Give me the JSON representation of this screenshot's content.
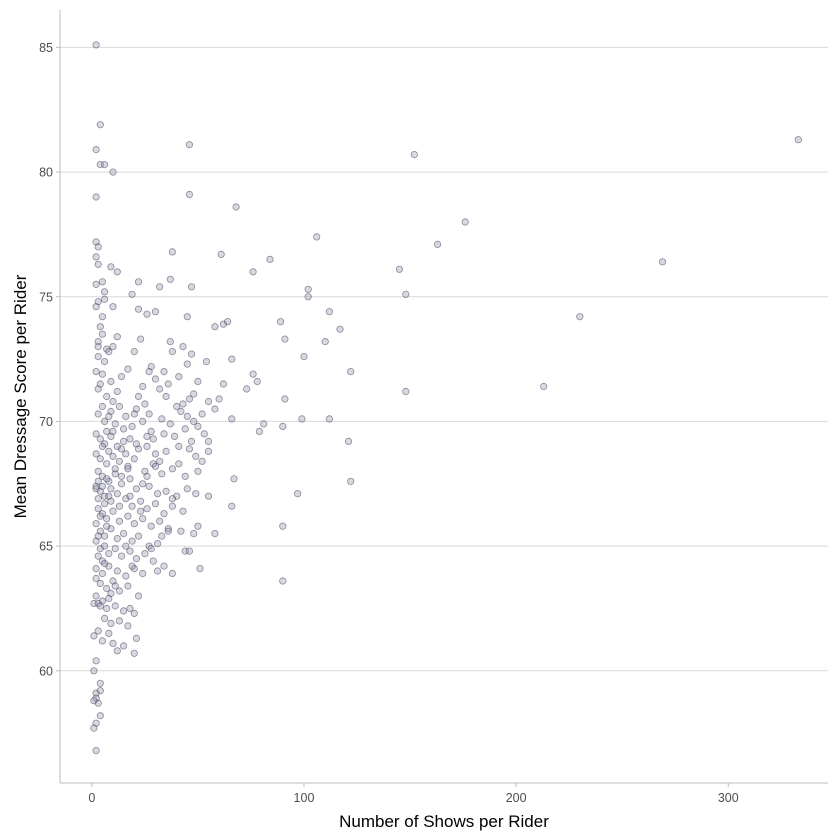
{
  "chart_data": {
    "type": "scatter",
    "title": "",
    "xlabel": "Number of Shows per Rider",
    "ylabel": "Mean Dressage Score per Rider",
    "xlim": [
      -15,
      347
    ],
    "ylim": [
      55.5,
      86.5
    ],
    "xticks": [
      0,
      100,
      200,
      300
    ],
    "yticks": [
      60,
      65,
      70,
      75,
      80,
      85
    ],
    "x_grid": false,
    "y_grid": true,
    "legend": "none",
    "colors": {
      "point_fill": "#8e8ea8",
      "point_stroke": "#3a3a55",
      "grid": "#d9d9d9",
      "axis": "#bdbdbd"
    },
    "points": [
      [
        2,
        85.1
      ],
      [
        4,
        81.9
      ],
      [
        2,
        80.9
      ],
      [
        4,
        80.3
      ],
      [
        6,
        80.3
      ],
      [
        10,
        80.0
      ],
      [
        2,
        79.0
      ],
      [
        46,
        81.1
      ],
      [
        152,
        80.7
      ],
      [
        333,
        81.3
      ],
      [
        46,
        79.1
      ],
      [
        68,
        78.6
      ],
      [
        176,
        78.0
      ],
      [
        106,
        77.4
      ],
      [
        163,
        77.1
      ],
      [
        2,
        77.2
      ],
      [
        3,
        77.0
      ],
      [
        38,
        76.8
      ],
      [
        61,
        76.7
      ],
      [
        2,
        76.6
      ],
      [
        3,
        76.3
      ],
      [
        269,
        76.4
      ],
      [
        84,
        76.5
      ],
      [
        9,
        76.2
      ],
      [
        12,
        76.0
      ],
      [
        76,
        76.0
      ],
      [
        145,
        76.1
      ],
      [
        5,
        75.6
      ],
      [
        2,
        75.5
      ],
      [
        6,
        75.2
      ],
      [
        22,
        75.6
      ],
      [
        37,
        75.7
      ],
      [
        47,
        75.4
      ],
      [
        32,
        75.4
      ],
      [
        102,
        75.3
      ],
      [
        102,
        75.0
      ],
      [
        148,
        75.1
      ],
      [
        3,
        74.8
      ],
      [
        6,
        74.9
      ],
      [
        19,
        75.1
      ],
      [
        10,
        74.6
      ],
      [
        22,
        74.5
      ],
      [
        26,
        74.3
      ],
      [
        30,
        74.4
      ],
      [
        45,
        74.2
      ],
      [
        112,
        74.4
      ],
      [
        230,
        74.2
      ],
      [
        4,
        73.8
      ],
      [
        5,
        73.5
      ],
      [
        3,
        73.2
      ],
      [
        12,
        73.4
      ],
      [
        23,
        73.3
      ],
      [
        37,
        73.2
      ],
      [
        58,
        73.8
      ],
      [
        62,
        73.9
      ],
      [
        64,
        74.0
      ],
      [
        89,
        74.0
      ],
      [
        117,
        73.7
      ],
      [
        91,
        73.3
      ],
      [
        110,
        73.2
      ],
      [
        38,
        72.8
      ],
      [
        43,
        73.0
      ],
      [
        47,
        72.7
      ],
      [
        3,
        72.6
      ],
      [
        7,
        72.9
      ],
      [
        10,
        73.0
      ],
      [
        20,
        72.8
      ],
      [
        28,
        72.2
      ],
      [
        45,
        72.3
      ],
      [
        54,
        72.4
      ],
      [
        66,
        72.5
      ],
      [
        100,
        72.6
      ],
      [
        122,
        72.0
      ],
      [
        2,
        72.0
      ],
      [
        5,
        71.9
      ],
      [
        9,
        71.6
      ],
      [
        14,
        71.8
      ],
      [
        17,
        72.1
      ],
      [
        30,
        71.7
      ],
      [
        36,
        71.5
      ],
      [
        50,
        71.6
      ],
      [
        62,
        71.5
      ],
      [
        76,
        71.9
      ],
      [
        148,
        71.2
      ],
      [
        213,
        71.4
      ],
      [
        78,
        71.6
      ],
      [
        3,
        71.3
      ],
      [
        7,
        71.0
      ],
      [
        12,
        71.2
      ],
      [
        22,
        71.0
      ],
      [
        35,
        71.0
      ],
      [
        46,
        70.9
      ],
      [
        48,
        71.1
      ],
      [
        55,
        70.8
      ],
      [
        73,
        71.3
      ],
      [
        91,
        70.9
      ],
      [
        5,
        70.6
      ],
      [
        9,
        70.4
      ],
      [
        13,
        70.6
      ],
      [
        16,
        70.2
      ],
      [
        21,
        70.5
      ],
      [
        27,
        70.3
      ],
      [
        33,
        70.1
      ],
      [
        40,
        70.6
      ],
      [
        42,
        70.4
      ],
      [
        45,
        70.2
      ],
      [
        52,
        70.3
      ],
      [
        58,
        70.5
      ],
      [
        66,
        70.1
      ],
      [
        81,
        69.9
      ],
      [
        99,
        70.1
      ],
      [
        112,
        70.1
      ],
      [
        3,
        70.3
      ],
      [
        6,
        70.0
      ],
      [
        8,
        70.2
      ],
      [
        11,
        69.9
      ],
      [
        15,
        69.7
      ],
      [
        19,
        69.8
      ],
      [
        24,
        70.0
      ],
      [
        28,
        69.6
      ],
      [
        34,
        69.5
      ],
      [
        39,
        69.4
      ],
      [
        44,
        69.7
      ],
      [
        50,
        69.8
      ],
      [
        53,
        69.5
      ],
      [
        90,
        69.8
      ],
      [
        79,
        69.6
      ],
      [
        121,
        69.2
      ],
      [
        2,
        69.5
      ],
      [
        4,
        69.3
      ],
      [
        6,
        69.1
      ],
      [
        9,
        69.4
      ],
      [
        12,
        69.0
      ],
      [
        15,
        69.2
      ],
      [
        18,
        69.3
      ],
      [
        22,
        68.9
      ],
      [
        26,
        69.0
      ],
      [
        30,
        68.7
      ],
      [
        35,
        68.8
      ],
      [
        41,
        69.0
      ],
      [
        46,
        68.9
      ],
      [
        49,
        68.6
      ],
      [
        55,
        68.8
      ],
      [
        2,
        68.7
      ],
      [
        4,
        68.5
      ],
      [
        7,
        68.3
      ],
      [
        10,
        68.6
      ],
      [
        13,
        68.4
      ],
      [
        17,
        68.2
      ],
      [
        20,
        68.5
      ],
      [
        25,
        68.0
      ],
      [
        29,
        68.3
      ],
      [
        33,
        67.9
      ],
      [
        38,
        68.1
      ],
      [
        44,
        67.8
      ],
      [
        50,
        68.0
      ],
      [
        3,
        68.0
      ],
      [
        5,
        67.8
      ],
      [
        8,
        67.6
      ],
      [
        11,
        67.9
      ],
      [
        14,
        67.5
      ],
      [
        18,
        67.7
      ],
      [
        21,
        67.3
      ],
      [
        24,
        67.5
      ],
      [
        27,
        67.4
      ],
      [
        31,
        67.1
      ],
      [
        35,
        67.2
      ],
      [
        40,
        67.0
      ],
      [
        45,
        67.3
      ],
      [
        49,
        67.1
      ],
      [
        67,
        67.7
      ],
      [
        97,
        67.1
      ],
      [
        122,
        67.6
      ],
      [
        2,
        67.4
      ],
      [
        4,
        67.2
      ],
      [
        6,
        67.0
      ],
      [
        9,
        66.8
      ],
      [
        12,
        67.1
      ],
      [
        16,
        66.9
      ],
      [
        19,
        66.6
      ],
      [
        23,
        66.8
      ],
      [
        26,
        66.5
      ],
      [
        30,
        66.7
      ],
      [
        34,
        66.3
      ],
      [
        38,
        66.6
      ],
      [
        43,
        66.4
      ],
      [
        55,
        67.0
      ],
      [
        66,
        66.6
      ],
      [
        3,
        66.5
      ],
      [
        5,
        66.3
      ],
      [
        7,
        66.1
      ],
      [
        10,
        66.4
      ],
      [
        13,
        66.0
      ],
      [
        17,
        66.2
      ],
      [
        20,
        65.9
      ],
      [
        24,
        66.1
      ],
      [
        28,
        65.8
      ],
      [
        32,
        66.0
      ],
      [
        36,
        65.7
      ],
      [
        42,
        65.6
      ],
      [
        50,
        65.8
      ],
      [
        2,
        65.9
      ],
      [
        4,
        65.6
      ],
      [
        6,
        65.4
      ],
      [
        9,
        65.7
      ],
      [
        12,
        65.3
      ],
      [
        15,
        65.5
      ],
      [
        19,
        65.2
      ],
      [
        22,
        65.4
      ],
      [
        27,
        65.0
      ],
      [
        31,
        65.1
      ],
      [
        36,
        65.6
      ],
      [
        48,
        65.5
      ],
      [
        58,
        65.5
      ],
      [
        90,
        65.8
      ],
      [
        2,
        65.2
      ],
      [
        4,
        64.9
      ],
      [
        6,
        65.0
      ],
      [
        8,
        64.7
      ],
      [
        11,
        64.9
      ],
      [
        14,
        64.6
      ],
      [
        18,
        64.8
      ],
      [
        21,
        64.5
      ],
      [
        25,
        64.7
      ],
      [
        29,
        64.4
      ],
      [
        34,
        64.2
      ],
      [
        44,
        64.8
      ],
      [
        46,
        64.8
      ],
      [
        3,
        64.6
      ],
      [
        5,
        64.4
      ],
      [
        8,
        64.2
      ],
      [
        12,
        64.0
      ],
      [
        16,
        63.8
      ],
      [
        20,
        64.1
      ],
      [
        24,
        63.9
      ],
      [
        31,
        64.0
      ],
      [
        38,
        63.9
      ],
      [
        51,
        64.1
      ],
      [
        2,
        63.7
      ],
      [
        4,
        63.5
      ],
      [
        7,
        63.3
      ],
      [
        10,
        63.6
      ],
      [
        13,
        63.2
      ],
      [
        17,
        63.4
      ],
      [
        90,
        63.6
      ],
      [
        2,
        63.0
      ],
      [
        5,
        62.8
      ],
      [
        8,
        62.9
      ],
      [
        11,
        62.6
      ],
      [
        15,
        62.4
      ],
      [
        20,
        62.3
      ],
      [
        1,
        62.7
      ],
      [
        3,
        62.7
      ],
      [
        4,
        62.6
      ],
      [
        6,
        62.1
      ],
      [
        9,
        61.9
      ],
      [
        13,
        62.0
      ],
      [
        17,
        61.8
      ],
      [
        21,
        61.3
      ],
      [
        3,
        61.6
      ],
      [
        5,
        61.2
      ],
      [
        8,
        61.5
      ],
      [
        1,
        61.4
      ],
      [
        10,
        61.1
      ],
      [
        20,
        60.7
      ],
      [
        2,
        60.4
      ],
      [
        1,
        60.0
      ],
      [
        4,
        59.5
      ],
      [
        2,
        59.1
      ],
      [
        4,
        59.2
      ],
      [
        2,
        58.9
      ],
      [
        3,
        58.7
      ],
      [
        1,
        58.8
      ],
      [
        4,
        58.2
      ],
      [
        2,
        57.9
      ],
      [
        1,
        57.7
      ],
      [
        2,
        56.8
      ],
      [
        3,
        67.6
      ],
      [
        2,
        67.3
      ],
      [
        5,
        67.4
      ],
      [
        7,
        67.7
      ],
      [
        3,
        66.9
      ],
      [
        6,
        66.7
      ],
      [
        8,
        67.0
      ],
      [
        4,
        66.2
      ],
      [
        7,
        65.8
      ],
      [
        3,
        65.4
      ],
      [
        6,
        64.3
      ],
      [
        2,
        64.1
      ],
      [
        9,
        63.1
      ],
      [
        5,
        63.9
      ],
      [
        11,
        68.1
      ],
      [
        8,
        68.8
      ],
      [
        5,
        69.0
      ],
      [
        7,
        69.6
      ],
      [
        10,
        70.8
      ],
      [
        4,
        71.5
      ],
      [
        6,
        72.4
      ],
      [
        8,
        72.8
      ],
      [
        3,
        73.0
      ],
      [
        5,
        74.2
      ],
      [
        2,
        74.6
      ],
      [
        14,
        68.9
      ],
      [
        16,
        68.7
      ],
      [
        18,
        67.0
      ],
      [
        23,
        66.4
      ],
      [
        26,
        67.8
      ],
      [
        29,
        69.3
      ],
      [
        32,
        68.4
      ],
      [
        37,
        69.9
      ],
      [
        41,
        68.3
      ],
      [
        47,
        69.2
      ],
      [
        52,
        68.4
      ],
      [
        43,
        70.7
      ],
      [
        38,
        66.9
      ],
      [
        33,
        65.4
      ],
      [
        28,
        64.9
      ],
      [
        22,
        63.0
      ],
      [
        18,
        62.5
      ],
      [
        15,
        61.0
      ],
      [
        12,
        60.8
      ],
      [
        25,
        70.7
      ],
      [
        32,
        71.3
      ],
      [
        34,
        72.0
      ],
      [
        41,
        71.8
      ],
      [
        48,
        70.0
      ],
      [
        55,
        69.2
      ],
      [
        60,
        70.9
      ],
      [
        9,
        67.3
      ],
      [
        13,
        66.6
      ],
      [
        16,
        65.0
      ],
      [
        19,
        64.2
      ],
      [
        11,
        63.4
      ],
      [
        7,
        62.5
      ],
      [
        14,
        67.8
      ],
      [
        17,
        68.1
      ],
      [
        10,
        69.6
      ],
      [
        20,
        70.3
      ],
      [
        24,
        71.4
      ],
      [
        27,
        72.0
      ],
      [
        21,
        69.1
      ],
      [
        26,
        69.4
      ],
      [
        30,
        68.2
      ]
    ]
  }
}
